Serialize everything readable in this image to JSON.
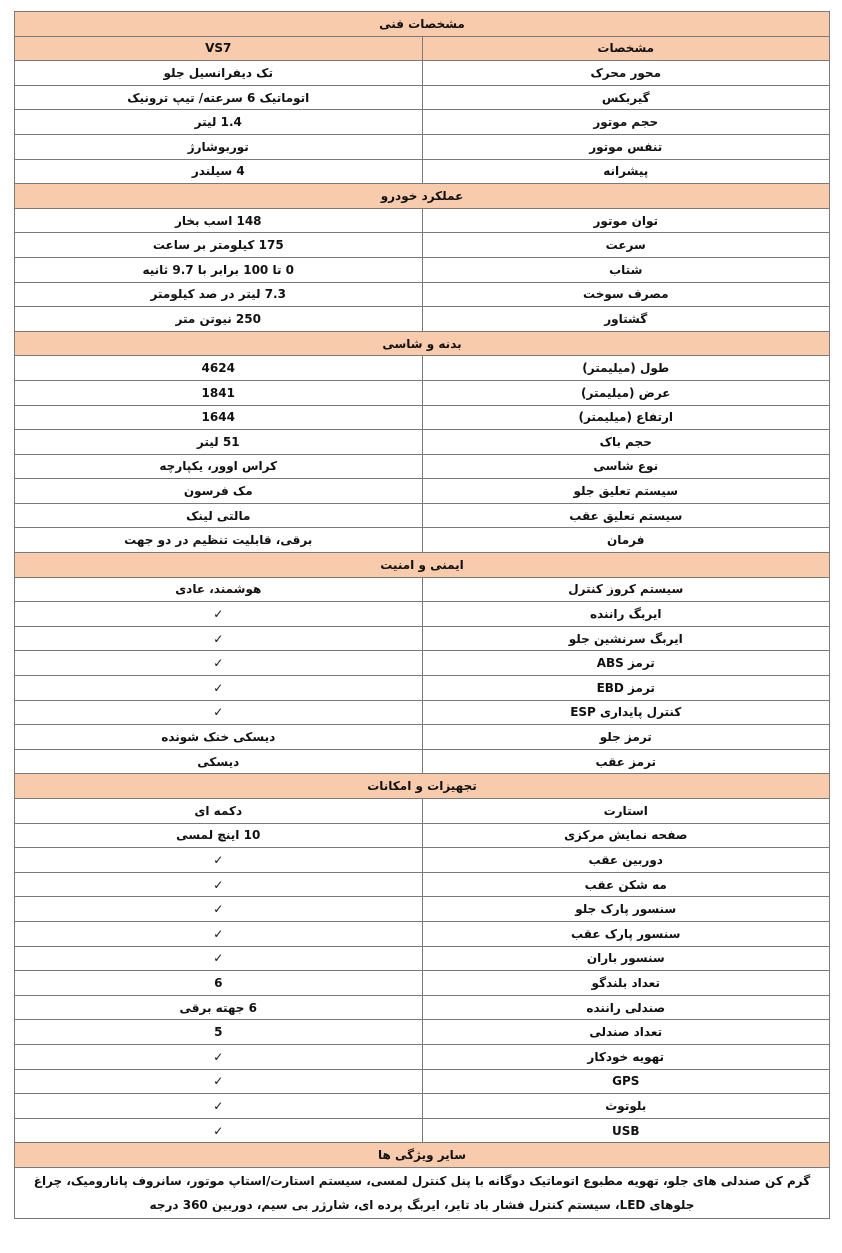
{
  "title": "مشخصات فنی",
  "header": {
    "label": "مشخصات",
    "value": "VS7"
  },
  "sections": [
    {
      "title": null,
      "rows": [
        {
          "label": "محور محرک",
          "value": "تک دیفرانسیل جلو"
        },
        {
          "label": "گیربکس",
          "value": "اتوماتیک 6 سرعته/ تیپ ترونیک"
        },
        {
          "label": "حجم موتور",
          "value": "1.4 لیتر"
        },
        {
          "label": "تنفس موتور",
          "value": "توربوشارژ"
        },
        {
          "label": "پیشرانه",
          "value": "4 سیلندر"
        }
      ]
    },
    {
      "title": "عملکرد خودرو",
      "rows": [
        {
          "label": "توان موتور",
          "value": "148 اسب بخار"
        },
        {
          "label": "سرعت",
          "value": "175 کیلومتر بر ساعت"
        },
        {
          "label": "شتاب",
          "value": "0 تا 100 برابر با 9.7 ثانیه"
        },
        {
          "label": "مصرف سوخت",
          "value": "7.3 لیتر در صد کیلومتر"
        },
        {
          "label": "گشتاور",
          "value": "250 نیوتن متر"
        }
      ]
    },
    {
      "title": "بدنه و شاسی",
      "rows": [
        {
          "label": "طول (میلیمتر)",
          "value": "4624"
        },
        {
          "label": "عرض (میلیمتر)",
          "value": "1841"
        },
        {
          "label": "ارتفاع (میلیمتر)",
          "value": "1644"
        },
        {
          "label": "حجم باک",
          "value": "51 لیتر"
        },
        {
          "label": "نوع شاسی",
          "value": "کراس اوور، یکپارچه"
        },
        {
          "label": "سیستم تعلیق جلو",
          "value": "مک فرسون"
        },
        {
          "label": "سیستم تعلیق عقب",
          "value": "مالتی لینک"
        },
        {
          "label": "فرمان",
          "value": "برقی، قابلیت تنظیم در دو جهت"
        }
      ]
    },
    {
      "title": "ایمنی و امنیت",
      "rows": [
        {
          "label": "سیستم کروز کنترل",
          "value": "هوشمند، عادی"
        },
        {
          "label": "ایربگ راننده",
          "value": "✓"
        },
        {
          "label": "ایربگ سرنشین جلو",
          "value": "✓"
        },
        {
          "label": "ترمز ABS",
          "value": "✓"
        },
        {
          "label": "ترمز EBD",
          "value": "✓"
        },
        {
          "label": "کنترل پایداری ESP",
          "value": "✓"
        },
        {
          "label": "ترمز جلو",
          "value": "دیسکی خنک شونده"
        },
        {
          "label": "ترمز عقب",
          "value": "دیسکی"
        }
      ]
    },
    {
      "title": "تجهیزات و امکانات",
      "rows": [
        {
          "label": "استارت",
          "value": "دکمه ای"
        },
        {
          "label": "صفحه نمایش مرکزی",
          "value": "10 اینچ لمسی"
        },
        {
          "label": "دوربین عقب",
          "value": "✓"
        },
        {
          "label": "مه شکن عقب",
          "value": "✓"
        },
        {
          "label": "سنسور پارک جلو",
          "value": "✓"
        },
        {
          "label": "سنسور پارک عقب",
          "value": "✓"
        },
        {
          "label": "سنسور باران",
          "value": "✓"
        },
        {
          "label": "تعداد بلندگو",
          "value": "6"
        },
        {
          "label": "صندلی راننده",
          "value": "6 جهته برقی"
        },
        {
          "label": "تعداد صندلی",
          "value": "5"
        },
        {
          "label": "تهویه خودکار",
          "value": "✓"
        },
        {
          "label": "GPS",
          "value": "✓"
        },
        {
          "label": "بلوتوث",
          "value": "✓"
        },
        {
          "label": "USB",
          "value": "✓"
        }
      ]
    }
  ],
  "other": {
    "title": "سایر ویژگی ها",
    "text": "گرم کن صندلی های جلو، تهویه مطبوع اتوماتیک دوگانه با پنل کنترل لمسی، سیستم استارت/استاپ موتور، سانروف پاناروميک، چراغ جلوهای LED، سیستم کنترل فشار باد تایر، ایربگ پرده ای، شارژر بی سیم، دوربین 360 درجه"
  },
  "colors": {
    "section_bg": "#f8cbad",
    "border": "#7a7a7a"
  }
}
